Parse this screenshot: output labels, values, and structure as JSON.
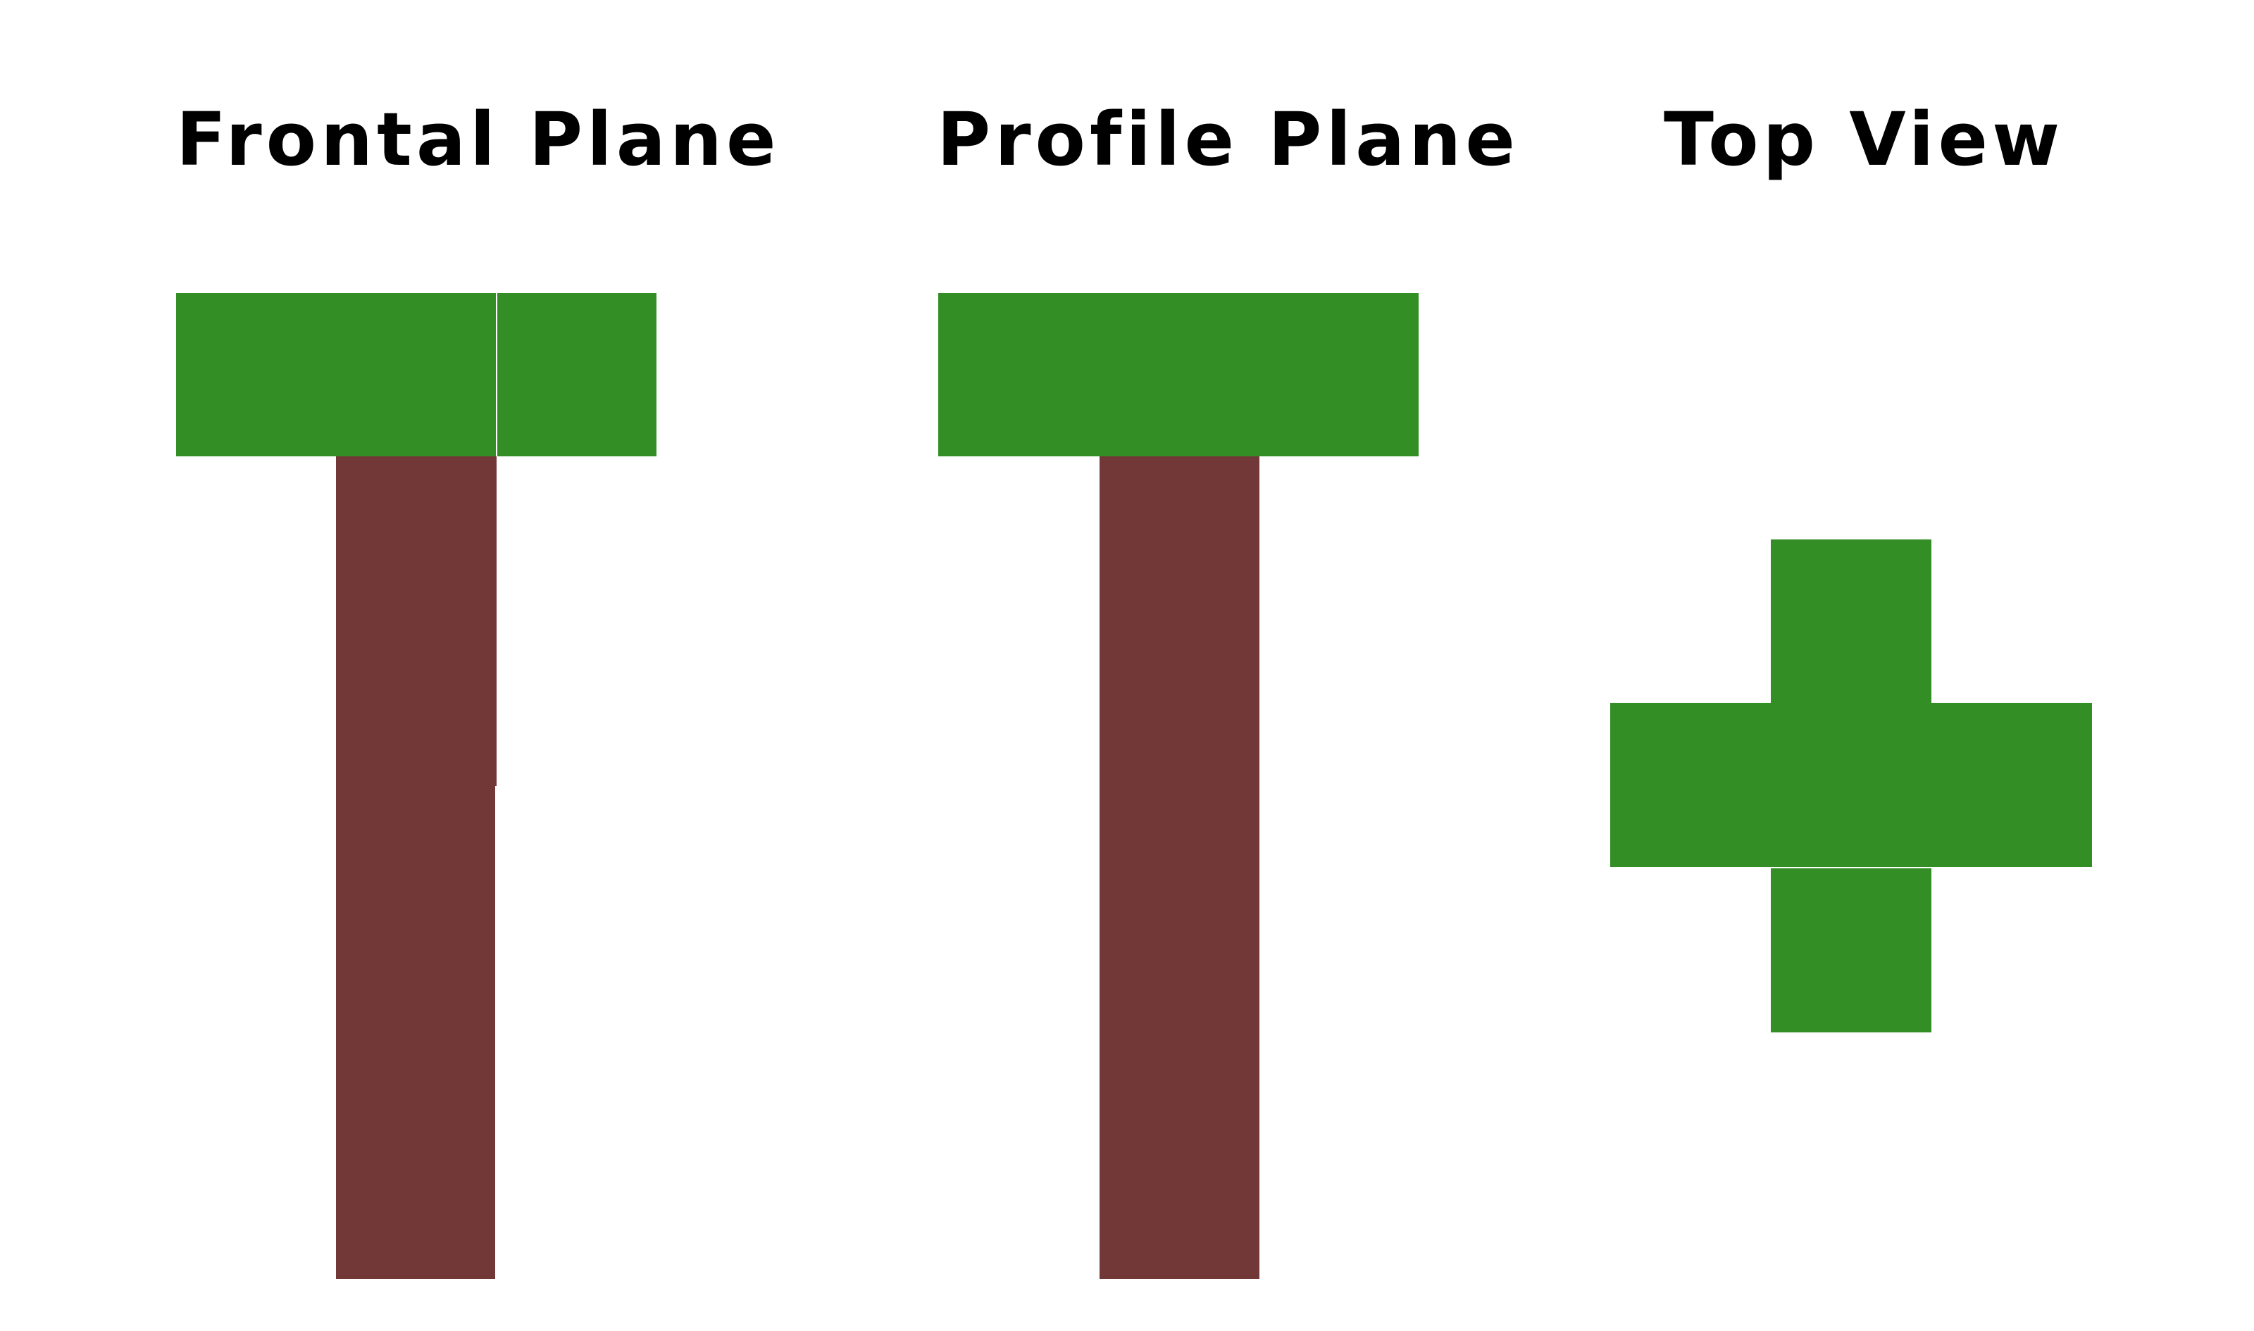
{
  "views": {
    "frontal": {
      "title": "Frontal Plane"
    },
    "profile": {
      "title": "Profile Plane"
    },
    "top": {
      "title": "Top View"
    }
  },
  "colors": {
    "foliage": "#348e26",
    "trunk": "#723838",
    "background": "#ffffff",
    "text": "#000000"
  }
}
